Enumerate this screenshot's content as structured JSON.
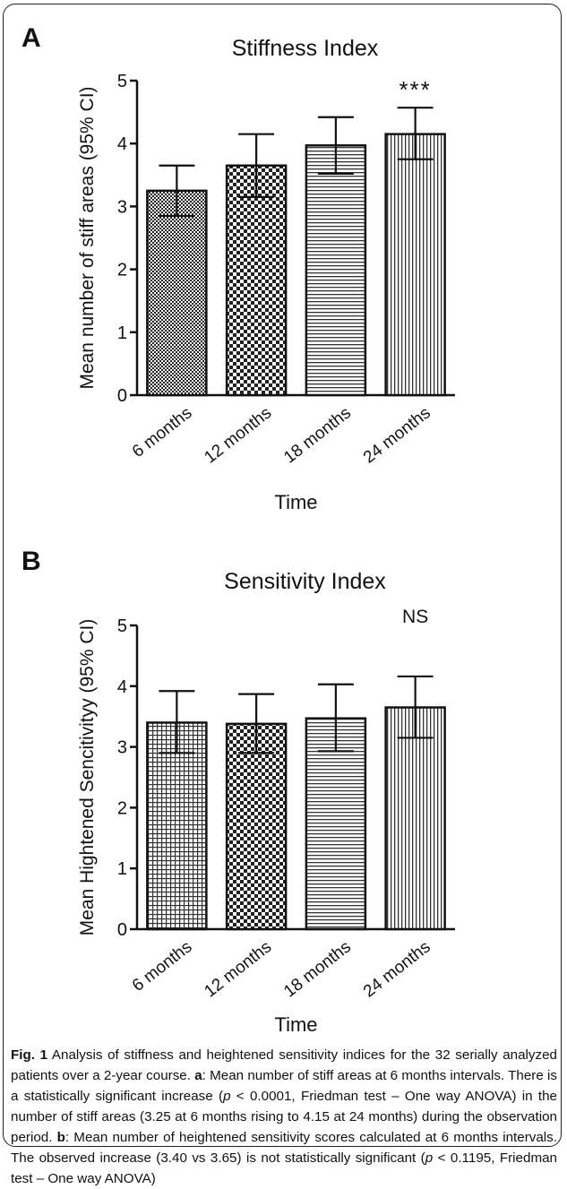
{
  "chart_data": [
    {
      "type": "bar",
      "panel_label": "A",
      "title": "Stiffness Index",
      "xlabel": "Time",
      "ylabel": "Mean number of stiff areas (95% CI)",
      "categories": [
        "6 months",
        "12 months",
        "18 months",
        "24 months"
      ],
      "values": [
        3.25,
        3.65,
        3.97,
        4.15
      ],
      "ci_lower": [
        2.85,
        3.15,
        3.52,
        3.75
      ],
      "ci_upper": [
        3.65,
        4.15,
        4.42,
        4.57
      ],
      "ylim": [
        0,
        5
      ],
      "yticks": [
        "0",
        "1",
        "2",
        "3",
        "4",
        "5"
      ],
      "annotation": "***",
      "annotation_category": "24 months",
      "patterns": [
        "fine-check",
        "check",
        "horizontal",
        "vertical"
      ],
      "grid": false
    },
    {
      "type": "bar",
      "panel_label": "B",
      "title": "Sensitivity Index",
      "xlabel": "Time",
      "ylabel": "Mean Hightened Sencitivityy (95% CI)",
      "categories": [
        "6 months",
        "12 months",
        "18 months",
        "24 months"
      ],
      "values": [
        3.4,
        3.38,
        3.47,
        3.65
      ],
      "ci_lower": [
        2.9,
        2.9,
        2.93,
        3.15
      ],
      "ci_upper": [
        3.92,
        3.87,
        4.03,
        4.16
      ],
      "ylim": [
        0,
        5
      ],
      "yticks": [
        "0",
        "1",
        "2",
        "3",
        "4",
        "5"
      ],
      "annotation": "NS",
      "annotation_category": "24 months",
      "patterns": [
        "grid",
        "check",
        "horizontal",
        "vertical"
      ],
      "grid": false
    }
  ],
  "caption": {
    "fig_label": "Fig. 1",
    "intro": " Analysis of stiffness and heightened sensitivity indices for the 32 serially analyzed patients over a 2-year course. ",
    "a_letter": "a",
    "a_text_1": ": Mean number of stiff areas at 6 months intervals. There is a statistically significant increase (",
    "p_1": "p",
    "a_text_2": " < 0.0001, Friedman test – One way ANOVA) in the number of stiff areas (3.25 at 6 months rising to 4.15 at 24 months) during the observation period. ",
    "b_letter": "b",
    "b_text_1": ": Mean number of heightened sensitivity scores calculated at 6 months intervals. The observed increase (3.40 vs 3.65) is not statistically significant (",
    "p_2": "p",
    "b_text_2": " < 0.1195, Friedman test – One way ANOVA)"
  }
}
